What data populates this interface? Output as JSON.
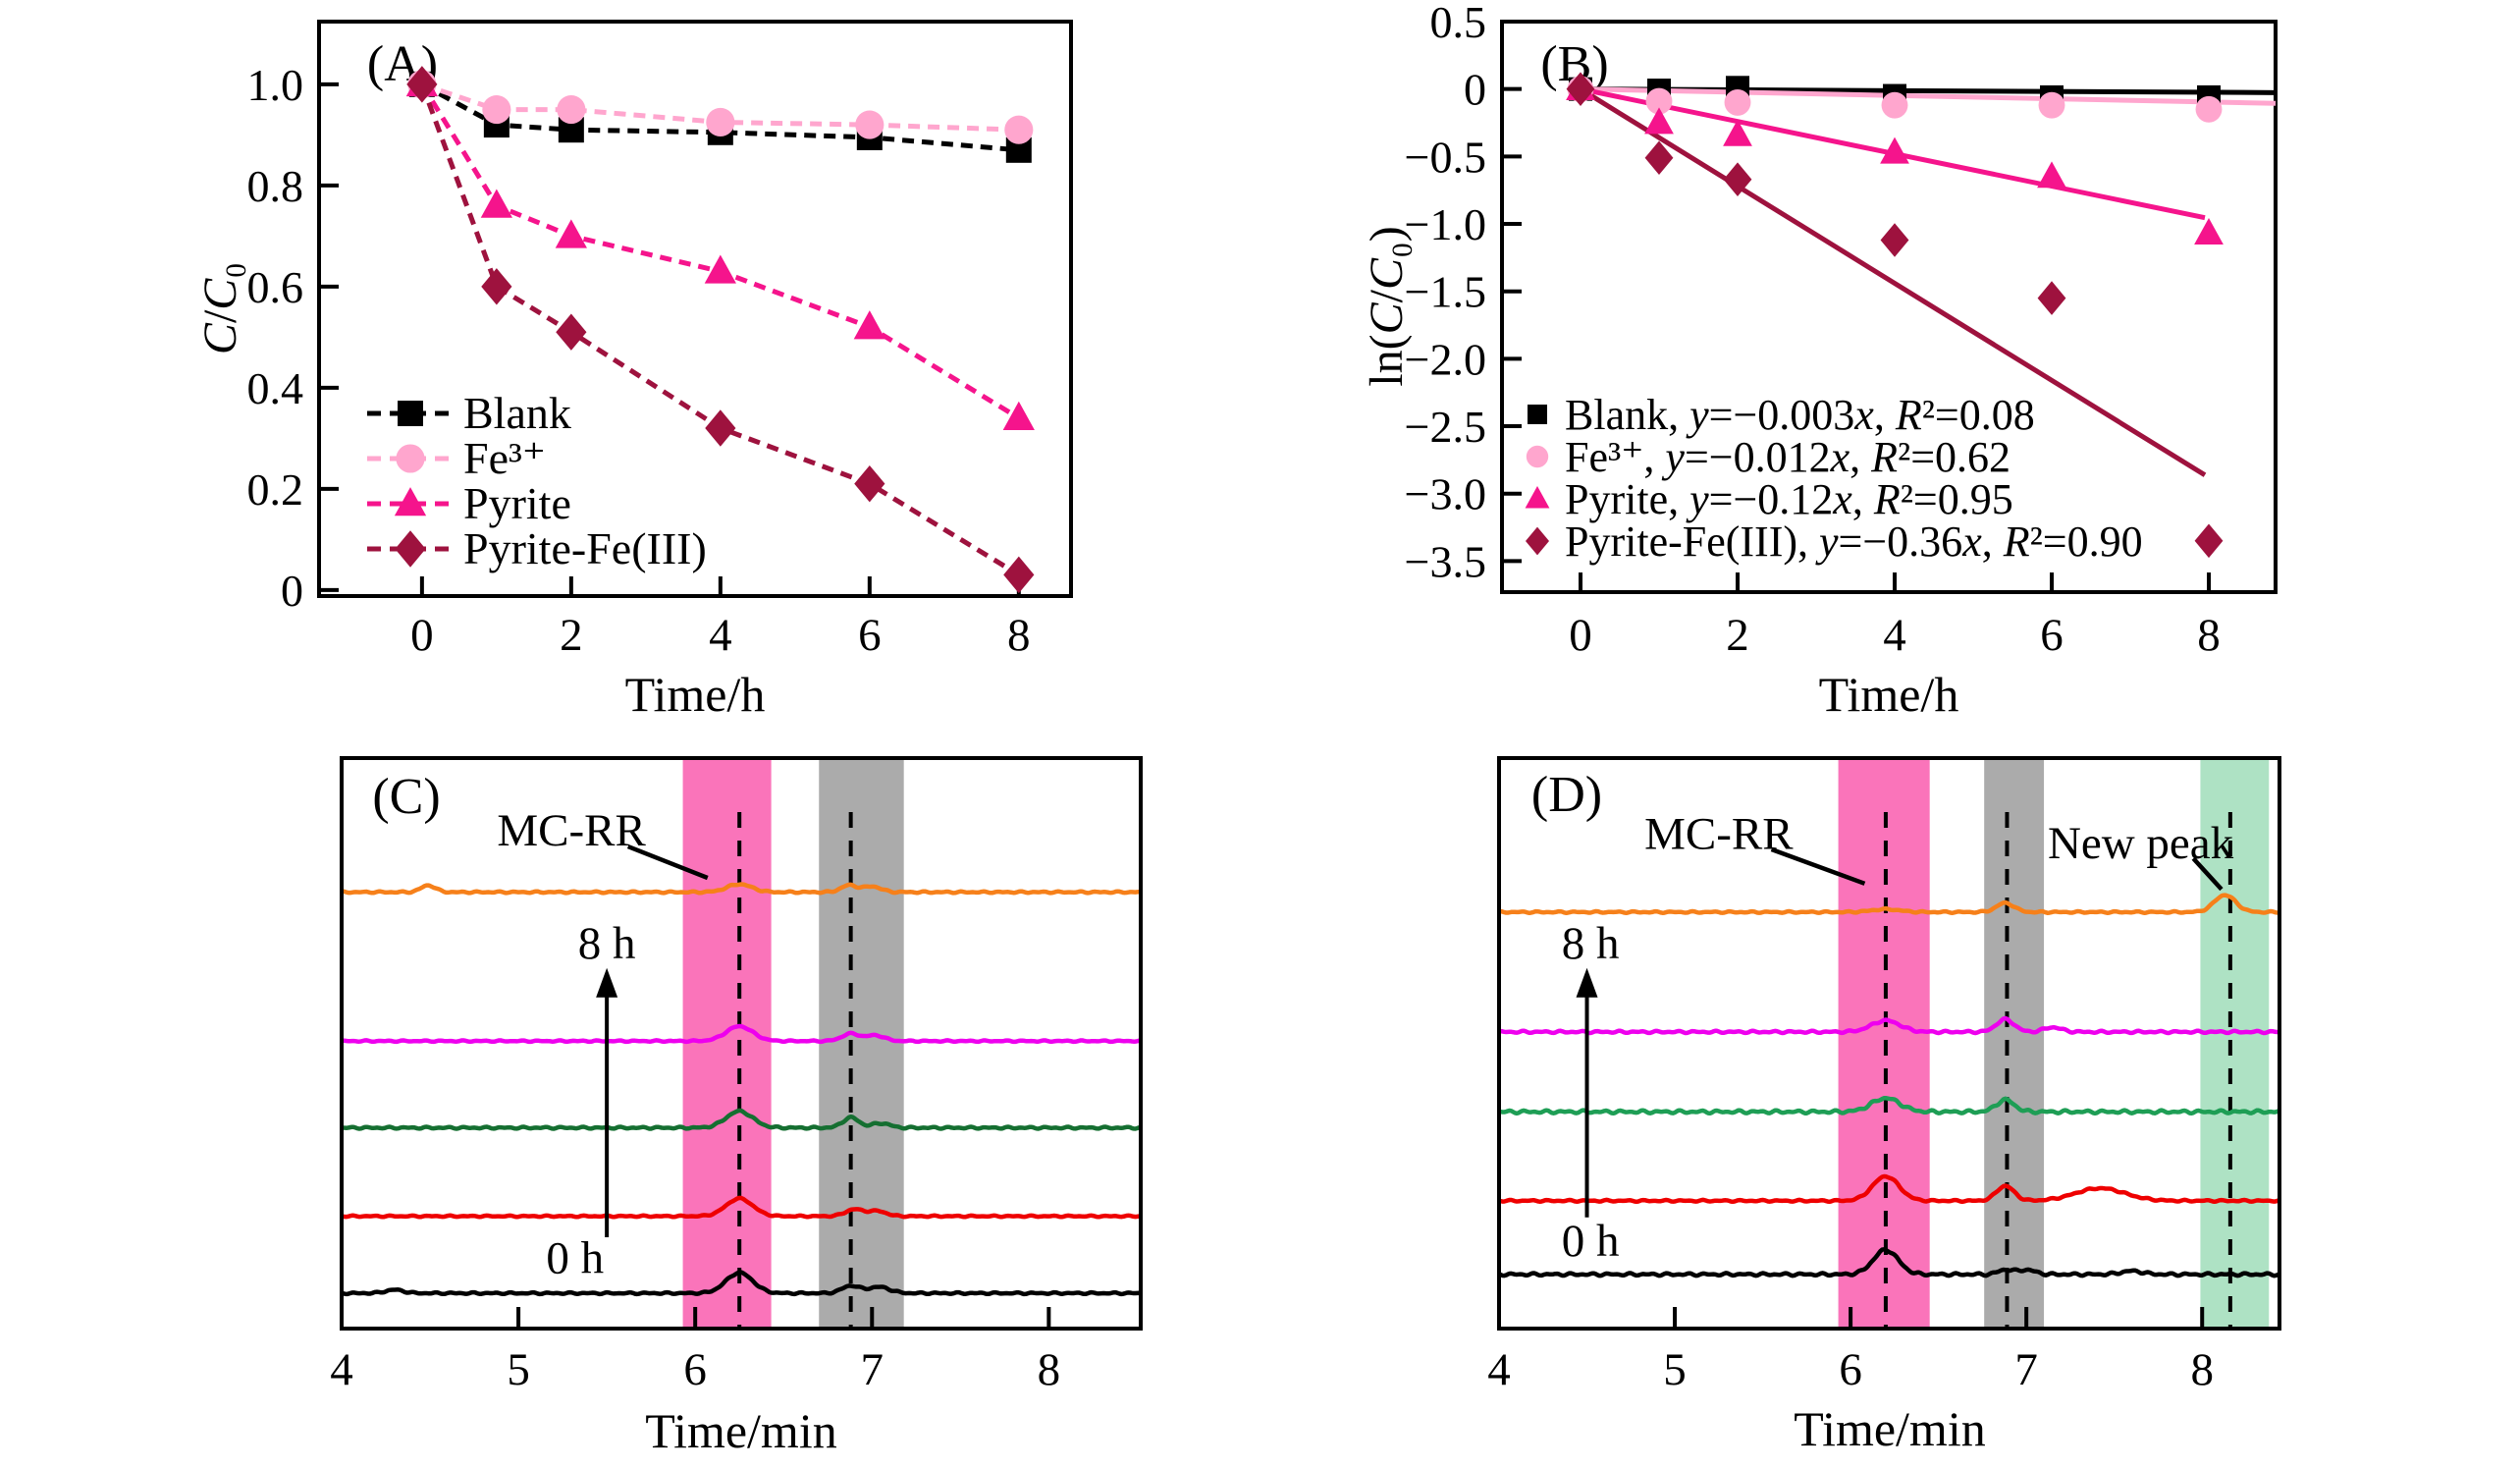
{
  "figure": {
    "background": "#ffffff",
    "text_color": "#000000"
  },
  "chart_data": [
    {
      "id": "A",
      "type": "line",
      "panel_label": "(A)",
      "xlabel": "Time/h",
      "ylabel": "C/C₀",
      "x": [
        0,
        1,
        2,
        4,
        6,
        8
      ],
      "series": [
        {
          "name": "Blank",
          "color": "#000000",
          "marker": "square",
          "values": [
            1.0,
            0.92,
            0.91,
            0.905,
            0.895,
            0.87
          ]
        },
        {
          "name": "Fe³⁺",
          "color": "#ffa6ce",
          "marker": "circle",
          "values": [
            1.0,
            0.95,
            0.95,
            0.925,
            0.92,
            0.91
          ]
        },
        {
          "name": "Pyrite",
          "color": "#f5148c",
          "marker": "triangle",
          "values": [
            1.0,
            0.76,
            0.7,
            0.63,
            0.52,
            0.34
          ]
        },
        {
          "name": "Pyrite-Fe(III)",
          "color": "#9e123e",
          "marker": "diamond",
          "values": [
            1.0,
            0.6,
            0.51,
            0.32,
            0.21,
            0.03
          ]
        }
      ],
      "xlim": [
        -1.38,
        8.7
      ],
      "ylim": [
        -0.012,
        1.124
      ],
      "xticks": [
        "0",
        "2",
        "4",
        "6",
        "8"
      ],
      "xtick_values": [
        0,
        2,
        4,
        6,
        8
      ],
      "yticks": [
        "0",
        "0.2",
        "0.4",
        "0.6",
        "0.8",
        "1.0"
      ],
      "ytick_values": [
        0,
        0.2,
        0.4,
        0.6,
        0.8,
        1.0
      ],
      "grid": false,
      "legend_position": "lower-left",
      "line_style": "dashed"
    },
    {
      "id": "B",
      "type": "scatter",
      "panel_label": "(B)",
      "xlabel": "Time/h",
      "ylabel": "ln(C/C₀)",
      "x": [
        0,
        1,
        2,
        4,
        6,
        8
      ],
      "series": [
        {
          "name": "Blank",
          "equation": "y=−0.003x, R²=0.08",
          "slope": -0.003,
          "fit_x_end": 8.85,
          "color": "#000000",
          "marker": "square",
          "values": [
            0,
            -0.01,
            0.01,
            -0.05,
            -0.06,
            -0.06
          ]
        },
        {
          "name": "Fe³⁺",
          "equation": "y=−0.012x, R²=0.62",
          "slope": -0.012,
          "fit_x_end": 8.85,
          "color": "#ffa6ce",
          "marker": "circle",
          "values": [
            0,
            -0.09,
            -0.1,
            -0.12,
            -0.12,
            -0.15
          ]
        },
        {
          "name": "Pyrite",
          "equation": "y=−0.12x, R²=0.95",
          "slope": -0.12,
          "fit_x_end": 7.95,
          "color": "#f5148c",
          "marker": "triangle",
          "values": [
            0,
            -0.25,
            -0.34,
            -0.47,
            -0.65,
            -1.07
          ]
        },
        {
          "name": "Pyrite-Fe(III)",
          "equation": "y=−0.36x, R²=0.90",
          "slope": -0.36,
          "fit_x_end": 7.95,
          "color": "#9e123e",
          "marker": "diamond",
          "values": [
            0,
            -0.51,
            -0.67,
            -1.12,
            -1.55,
            -3.35
          ]
        }
      ],
      "xlim": [
        -1.0,
        8.85
      ],
      "ylim": [
        -3.73,
        0.5
      ],
      "xticks": [
        "0",
        "2",
        "4",
        "6",
        "8"
      ],
      "xtick_values": [
        0,
        2,
        4,
        6,
        8
      ],
      "yticks": [
        "0.5",
        "0",
        "−0.5",
        "−1.0",
        "−1.5",
        "−2.0",
        "−2.5",
        "−3.0",
        "−3.5"
      ],
      "ytick_values": [
        0.5,
        0,
        -0.5,
        -1.0,
        -1.5,
        -2.0,
        -2.5,
        -3.0,
        -3.5
      ],
      "grid": false,
      "legend_position": "lower-left"
    },
    {
      "id": "C",
      "type": "chromatogram",
      "panel_label": "(C)",
      "xlabel": "Time/min",
      "xlim": [
        4,
        8.52
      ],
      "xticks": [
        "4",
        "5",
        "6",
        "7",
        "8"
      ],
      "xtick_values": [
        4,
        5,
        6,
        7,
        8
      ],
      "bands": [
        {
          "name": "MC-RR retention band",
          "x1": 5.93,
          "x2": 6.43,
          "color": "#fa74ba",
          "dash_x": 6.25
        },
        {
          "name": "secondary retention band",
          "x1": 6.7,
          "x2": 7.18,
          "color": "#ababab",
          "dash_x": 6.88
        }
      ],
      "traces": [
        {
          "color": "#000000",
          "baseline": 0.062,
          "noise": 0.0016,
          "peaks": [
            {
              "c": 6.25,
              "h": 0.036,
              "w": 0.075
            },
            {
              "c": 6.88,
              "h": 0.013,
              "w": 0.05
            },
            {
              "c": 7.04,
              "h": 0.011,
              "w": 0.06
            },
            {
              "c": 4.3,
              "h": 0.006,
              "w": 0.05
            }
          ]
        },
        {
          "color": "#ee0000",
          "baseline": 0.197,
          "noise": 0.0013,
          "peaks": [
            {
              "c": 6.25,
              "h": 0.031,
              "w": 0.075
            },
            {
              "c": 6.9,
              "h": 0.012,
              "w": 0.05
            },
            {
              "c": 7.03,
              "h": 0.009,
              "w": 0.05
            }
          ]
        },
        {
          "color": "#156f31",
          "baseline": 0.352,
          "noise": 0.0018,
          "peaks": [
            {
              "c": 6.25,
              "h": 0.029,
              "w": 0.075
            },
            {
              "c": 6.88,
              "h": 0.018,
              "w": 0.045
            },
            {
              "c": 7.05,
              "h": 0.008,
              "w": 0.05
            }
          ]
        },
        {
          "color": "#ee00ee",
          "baseline": 0.504,
          "noise": 0.0013,
          "peaks": [
            {
              "c": 6.25,
              "h": 0.026,
              "w": 0.075
            },
            {
              "c": 6.88,
              "h": 0.013,
              "w": 0.05
            },
            {
              "c": 7.02,
              "h": 0.01,
              "w": 0.05
            }
          ]
        },
        {
          "color": "#f6801a",
          "baseline": 0.765,
          "noise": 0.0015,
          "peaks": [
            {
              "c": 6.25,
              "h": 0.014,
              "w": 0.07
            },
            {
              "c": 6.87,
              "h": 0.012,
              "w": 0.045
            },
            {
              "c": 7.0,
              "h": 0.01,
              "w": 0.05
            },
            {
              "c": 4.49,
              "h": 0.012,
              "w": 0.04
            }
          ]
        }
      ],
      "annotations": {
        "peak_label": {
          "text": "MC-RR",
          "x": 5.3,
          "y": 0.874,
          "line": [
            [
              5.62,
              0.845
            ],
            [
              6.07,
              0.79
            ]
          ]
        },
        "top_time": {
          "text": "8 h",
          "x": 5.5,
          "y": 0.676
        },
        "bottom_time": {
          "text": "0 h",
          "x": 5.32,
          "y": 0.125
        },
        "arrow": {
          "x": 5.5,
          "y1": 0.16,
          "y2": 0.632
        }
      }
    },
    {
      "id": "D",
      "type": "chromatogram",
      "panel_label": "(D)",
      "xlabel": "Time/min",
      "xlim": [
        4,
        8.44
      ],
      "xticks": [
        "4",
        "5",
        "6",
        "7",
        "8"
      ],
      "xtick_values": [
        4,
        5,
        6,
        7,
        8
      ],
      "bands": [
        {
          "name": "MC-RR retention band",
          "x1": 5.93,
          "x2": 6.45,
          "color": "#fa74ba",
          "dash_x": 6.2
        },
        {
          "name": "secondary retention band",
          "x1": 6.76,
          "x2": 7.1,
          "color": "#ababab",
          "dash_x": 6.89
        },
        {
          "name": "new peak band",
          "x1": 7.99,
          "x2": 8.38,
          "color": "#aee2c4",
          "dash_x": 8.16
        }
      ],
      "traces": [
        {
          "color": "#000000",
          "baseline": 0.095,
          "noise": 0.0024,
          "peaks": [
            {
              "c": 6.2,
              "h": 0.043,
              "w": 0.07
            },
            {
              "c": 6.88,
              "h": 0.008,
              "w": 0.04
            },
            {
              "c": 7.0,
              "h": 0.008,
              "w": 0.05
            },
            {
              "c": 7.6,
              "h": 0.006,
              "w": 0.06
            }
          ]
        },
        {
          "color": "#ee0000",
          "baseline": 0.224,
          "noise": 0.0016,
          "peaks": [
            {
              "c": 6.2,
              "h": 0.043,
              "w": 0.075
            },
            {
              "c": 6.88,
              "h": 0.026,
              "w": 0.05
            },
            {
              "c": 7.42,
              "h": 0.022,
              "w": 0.14
            }
          ]
        },
        {
          "color": "#1e9e55",
          "baseline": 0.38,
          "noise": 0.0028,
          "peaks": [
            {
              "c": 6.2,
              "h": 0.024,
              "w": 0.08
            },
            {
              "c": 6.88,
              "h": 0.021,
              "w": 0.05
            }
          ]
        },
        {
          "color": "#ee00ee",
          "baseline": 0.52,
          "noise": 0.002,
          "peaks": [
            {
              "c": 6.2,
              "h": 0.02,
              "w": 0.08
            },
            {
              "c": 6.88,
              "h": 0.022,
              "w": 0.05
            },
            {
              "c": 7.15,
              "h": 0.008,
              "w": 0.05
            }
          ]
        },
        {
          "color": "#f6801a",
          "baseline": 0.73,
          "noise": 0.0015,
          "peaks": [
            {
              "c": 6.2,
              "h": 0.005,
              "w": 0.08
            },
            {
              "c": 6.88,
              "h": 0.016,
              "w": 0.05
            },
            {
              "c": 8.13,
              "h": 0.03,
              "w": 0.06
            }
          ]
        }
      ],
      "annotations": {
        "peak_label": {
          "text": "MC-RR",
          "x": 5.25,
          "y": 0.868,
          "line": [
            [
              5.55,
              0.84
            ],
            [
              6.08,
              0.78
            ]
          ]
        },
        "new_peak_label": {
          "text": "New peak",
          "x": 7.65,
          "y": 0.852,
          "line": [
            [
              7.95,
              0.824
            ],
            [
              8.11,
              0.77
            ]
          ]
        },
        "top_time": {
          "text": "8 h",
          "x": 4.52,
          "y": 0.676
        },
        "bottom_time": {
          "text": "0 h",
          "x": 4.52,
          "y": 0.155
        },
        "arrow": {
          "x": 4.5,
          "y1": 0.195,
          "y2": 0.632
        }
      }
    }
  ]
}
